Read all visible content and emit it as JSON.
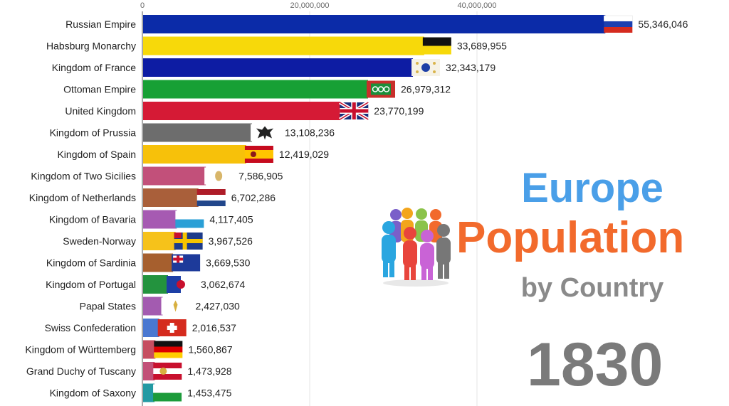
{
  "title": {
    "line1": "Europe",
    "line2": "Population",
    "line3": "by Country",
    "year": "1830"
  },
  "colors": {
    "title_line1": "#4a9fe8",
    "title_line2": "#f26a2c",
    "title_line3": "#8a8a8a",
    "year": "#7a7a7a"
  },
  "people_icon": "people-group-icon",
  "chart_data": {
    "type": "bar",
    "orientation": "horizontal",
    "xlim": [
      0,
      60000000
    ],
    "x_ticks": [
      0,
      20000000,
      40000000
    ],
    "x_tick_labels": [
      "0",
      "20,000,000",
      "40,000,000"
    ],
    "grid": true,
    "legend": "none",
    "categories": [
      "Russian Empire",
      "Habsburg Monarchy",
      "Kingdom of France",
      "Ottoman Empire",
      "United Kingdom",
      "Kingdom of Prussia",
      "Kingdom of Spain",
      "Kingdom of Two Sicilies",
      "Kingdom of Netherlands",
      "Kingdom of Bavaria",
      "Sweden-Norway",
      "Kingdom of Sardinia",
      "Kingdom of Portugal",
      "Papal States",
      "Swiss Confederation",
      "Kingdom of Württemberg",
      "Grand Duchy of Tuscany",
      "Kingdom of Saxony"
    ],
    "values": [
      55346046,
      33689955,
      32343179,
      26979312,
      23770199,
      13108236,
      12419029,
      7586905,
      6702286,
      4117405,
      3967526,
      3669530,
      3062674,
      2427030,
      2016537,
      1560867,
      1473928,
      1453475
    ],
    "value_labels": [
      "55,346,046",
      "33,689,955",
      "32,343,179",
      "26,979,312",
      "23,770,199",
      "13,108,236",
      "12,419,029",
      "7,586,905",
      "6,702,286",
      "4,117,405",
      "3,967,526",
      "3,669,530",
      "3,062,674",
      "2,427,030",
      "2,016,537",
      "1,560,867",
      "1,473,928",
      "1,453,475"
    ],
    "bar_colors": [
      "#0b2ba8",
      "#f7d90a",
      "#0d1ca3",
      "#17a035",
      "#d51a35",
      "#6d6d6d",
      "#f7c10a",
      "#c2507a",
      "#a95f3a",
      "#a65ab2",
      "#f6c21a",
      "#a65f2e",
      "#23933e",
      "#a35bb0",
      "#4a78d1",
      "#c64e60",
      "#c25078",
      "#239aa3"
    ],
    "flag_icons": [
      "russia-flag-icon",
      "habsburg-flag-icon",
      "france-royal-flag-icon",
      "ottoman-flag-icon",
      "uk-flag-icon",
      "prussia-eagle-icon",
      "spain-flag-icon",
      "two-sicilies-flag-icon",
      "netherlands-flag-icon",
      "bavaria-flag-icon",
      "sweden-norway-flag-icon",
      "sardinia-flag-icon",
      "portugal-flag-icon",
      "papal-states-flag-icon",
      "swiss-flag-icon",
      "wurttemberg-flag-icon",
      "tuscany-flag-icon",
      "saxony-flag-icon"
    ]
  }
}
